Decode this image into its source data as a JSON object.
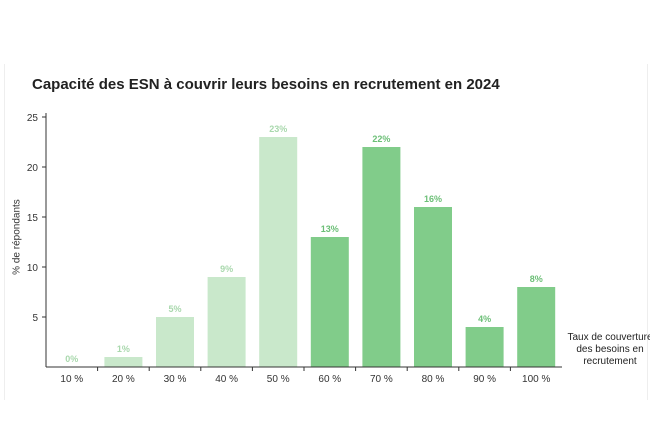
{
  "chart_data": {
    "type": "bar",
    "title": "Capacité des ESN à couvrir leurs besoins en recrutement en 2024",
    "ylabel": "% de répondants",
    "xlabel": "Taux de couverture des besoins en recrutement",
    "categories": [
      "10 %",
      "20 %",
      "30 %",
      "40 %",
      "50 %",
      "60 %",
      "70 %",
      "80 %",
      "90 %",
      "100 %"
    ],
    "values": [
      0,
      1,
      5,
      9,
      23,
      13,
      22,
      16,
      4,
      8
    ],
    "data_labels": [
      "0%",
      "1%",
      "5%",
      "9%",
      "23%",
      "13%",
      "22%",
      "16%",
      "4%",
      "8%"
    ],
    "ylim": [
      0,
      25
    ],
    "yticks": [
      5,
      10,
      15,
      20,
      25
    ],
    "grid": false,
    "colors": {
      "light_bar": "#c9e8cb",
      "dark_bar": "#81cc8a",
      "light_label": "#a9d8ad",
      "dark_label": "#6cbf77",
      "axis": "#333333"
    },
    "dark_from_index": 5
  }
}
